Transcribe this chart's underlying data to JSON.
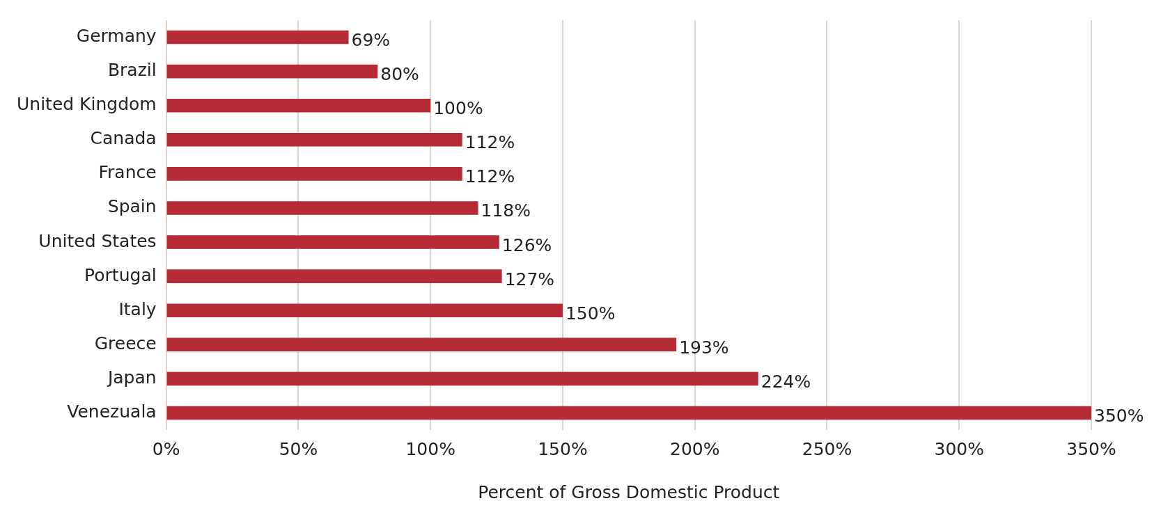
{
  "chart_data": {
    "type": "bar",
    "orientation": "horizontal",
    "xlabel": "Percent of Gross Domestic Product",
    "categories": [
      "Germany",
      "Brazil",
      "United Kingdom",
      "Canada",
      "France",
      "Spain",
      "United States",
      "Portugal",
      "Italy",
      "Greece",
      "Japan",
      "Venezuala"
    ],
    "values": [
      69,
      80,
      100,
      112,
      112,
      118,
      126,
      127,
      150,
      193,
      224,
      350
    ],
    "value_labels": [
      "69%",
      "80%",
      "100%",
      "112%",
      "112%",
      "118%",
      "126%",
      "127%",
      "150%",
      "193%",
      "224%",
      "350%"
    ],
    "color": "#b52b36",
    "xlim": [
      0,
      350
    ],
    "xticks": [
      {
        "value": 0,
        "label": "0%"
      },
      {
        "value": 50,
        "label": "50%"
      },
      {
        "value": 100,
        "label": "100%"
      },
      {
        "value": 150,
        "label": "150%"
      },
      {
        "value": 200,
        "label": "200%"
      },
      {
        "value": 250,
        "label": "250%"
      },
      {
        "value": 300,
        "label": "300%"
      },
      {
        "value": 350,
        "label": "350%"
      }
    ],
    "grid": "x",
    "legend": false
  }
}
